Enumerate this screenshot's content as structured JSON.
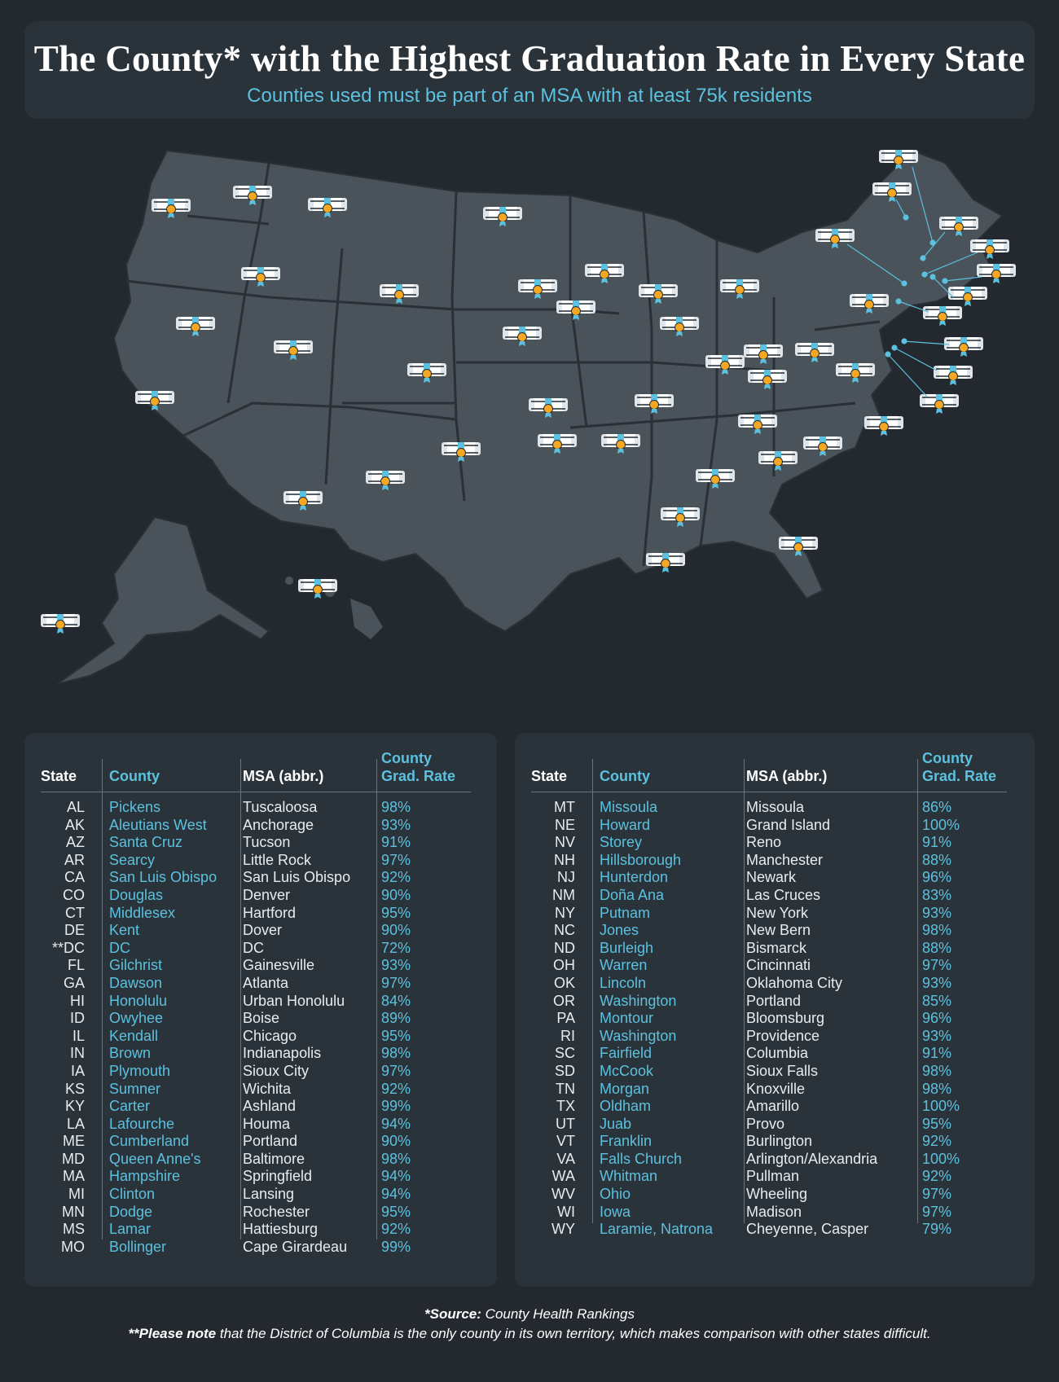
{
  "header": {
    "title": "The County* with the Highest Graduation Rate in Every State",
    "subtitle": "Counties used must be part of an MSA with at least 75k residents"
  },
  "table_headers": {
    "state": "State",
    "county": "County",
    "msa": "MSA (abbr.)",
    "rate_line1": "County",
    "rate_line2": "Grad. Rate"
  },
  "left_rows": [
    [
      "AL",
      "Pickens",
      "Tuscaloosa",
      "98%"
    ],
    [
      "AK",
      "Aleutians West",
      "Anchorage",
      "93%"
    ],
    [
      "AZ",
      "Santa Cruz",
      "Tucson",
      "91%"
    ],
    [
      "AR",
      "Searcy",
      "Little Rock",
      "97%"
    ],
    [
      "CA",
      "San Luis Obispo",
      "San Luis Obispo",
      "92%"
    ],
    [
      "CO",
      "Douglas",
      "Denver",
      "90%"
    ],
    [
      "CT",
      "Middlesex",
      "Hartford",
      "95%"
    ],
    [
      "DE",
      "Kent",
      "Dover",
      "90%"
    ],
    [
      "**DC",
      "DC",
      "DC",
      "72%"
    ],
    [
      "FL",
      "Gilchrist",
      "Gainesville",
      "93%"
    ],
    [
      "GA",
      "Dawson",
      "Atlanta",
      "97%"
    ],
    [
      "HI",
      "Honolulu",
      "Urban Honolulu",
      "84%"
    ],
    [
      "ID",
      "Owyhee",
      "Boise",
      "89%"
    ],
    [
      "IL",
      "Kendall",
      "Chicago",
      "95%"
    ],
    [
      "IN",
      "Brown",
      "Indianapolis",
      "98%"
    ],
    [
      "IA",
      "Plymouth",
      "Sioux City",
      "97%"
    ],
    [
      "KS",
      "Sumner",
      "Wichita",
      "92%"
    ],
    [
      "KY",
      "Carter",
      "Ashland",
      "99%"
    ],
    [
      "LA",
      "Lafourche",
      "Houma",
      "94%"
    ],
    [
      "ME",
      "Cumberland",
      "Portland",
      "90%"
    ],
    [
      "MD",
      "Queen Anne's",
      "Baltimore",
      "98%"
    ],
    [
      "MA",
      "Hampshire",
      "Springfield",
      "94%"
    ],
    [
      "MI",
      "Clinton",
      "Lansing",
      "94%"
    ],
    [
      "MN",
      "Dodge",
      "Rochester",
      "95%"
    ],
    [
      "MS",
      "Lamar",
      "Hattiesburg",
      "92%"
    ],
    [
      "MO",
      "Bollinger",
      "Cape Girardeau",
      "99%"
    ]
  ],
  "right_rows": [
    [
      "MT",
      "Missoula",
      "Missoula",
      "86%"
    ],
    [
      "NE",
      "Howard",
      "Grand Island",
      "100%"
    ],
    [
      "NV",
      "Storey",
      "Reno",
      "91%"
    ],
    [
      "NH",
      "Hillsborough",
      "Manchester",
      "88%"
    ],
    [
      "NJ",
      "Hunterdon",
      "Newark",
      "96%"
    ],
    [
      "NM",
      "Doña Ana",
      "Las Cruces",
      "83%"
    ],
    [
      "NY",
      "Putnam",
      "New York",
      "93%"
    ],
    [
      "NC",
      "Jones",
      "New Bern",
      "98%"
    ],
    [
      "ND",
      "Burleigh",
      "Bismarck",
      "88%"
    ],
    [
      "OH",
      "Warren",
      "Cincinnati",
      "97%"
    ],
    [
      "OK",
      "Lincoln",
      "Oklahoma City",
      "93%"
    ],
    [
      "OR",
      "Washington",
      "Portland",
      "85%"
    ],
    [
      "PA",
      "Montour",
      "Bloomsburg",
      "96%"
    ],
    [
      "RI",
      "Washington",
      "Providence",
      "93%"
    ],
    [
      "SC",
      "Fairfield",
      "Columbia",
      "91%"
    ],
    [
      "SD",
      "McCook",
      "Sioux Falls",
      "98%"
    ],
    [
      "TN",
      "Morgan",
      "Knoxville",
      "98%"
    ],
    [
      "TX",
      "Oldham",
      "Amarillo",
      "100%"
    ],
    [
      "UT",
      "Juab",
      "Provo",
      "95%"
    ],
    [
      "VT",
      "Franklin",
      "Burlington",
      "92%"
    ],
    [
      "VA",
      "Falls Church",
      "Arlington/Alexandria",
      "100%"
    ],
    [
      "WA",
      "Whitman",
      "Pullman",
      "92%"
    ],
    [
      "WV",
      "Ohio",
      "Wheeling",
      "97%"
    ],
    [
      "WI",
      "Iowa",
      "Madison",
      "97%"
    ],
    [
      "WY",
      "Laramie, Natrona",
      "Cheyenne, Casper",
      "79%"
    ]
  ],
  "footer": {
    "source_label": "*Source:",
    "source_text": " County Health Rankings",
    "note_label": "**Please note",
    "note_text": " that the District of Columbia is the only county in its own territory, which makes comparison with other states difficult."
  },
  "colors": {
    "accent": "#5bc1df",
    "background": "#23292f",
    "panel": "#2b333a",
    "land": "#4a525a",
    "marker_dot": "#f5a623"
  },
  "map_icon": "diploma-icon"
}
